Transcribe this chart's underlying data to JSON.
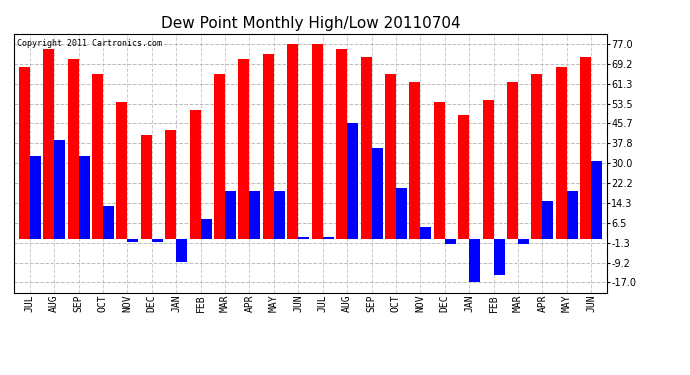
{
  "title": "Dew Point Monthly High/Low 20110704",
  "copyright": "Copyright 2011 Cartronics.com",
  "months": [
    "JUL",
    "AUG",
    "SEP",
    "OCT",
    "NOV",
    "DEC",
    "JAN",
    "FEB",
    "MAR",
    "APR",
    "MAY",
    "JUN",
    "JUL",
    "AUG",
    "SEP",
    "OCT",
    "NOV",
    "DEC",
    "JAN",
    "FEB",
    "MAR",
    "APR",
    "MAY",
    "JUN"
  ],
  "highs": [
    68,
    75,
    71,
    65,
    54,
    41,
    43,
    51,
    65,
    71,
    73,
    77,
    77,
    75,
    72,
    65,
    62,
    54,
    49,
    55,
    62,
    65,
    68,
    72
  ],
  "lows": [
    33,
    39,
    33,
    13,
    -1,
    -1,
    -9,
    8,
    19,
    19,
    19,
    1,
    1,
    46,
    36,
    20,
    5,
    -2,
    -17,
    -14,
    -2,
    15,
    19,
    31
  ],
  "bar_color_high": "#ff0000",
  "bar_color_low": "#0000ff",
  "yticks": [
    -17.0,
    -9.2,
    -1.3,
    6.5,
    14.3,
    22.2,
    30.0,
    37.8,
    45.7,
    53.5,
    61.3,
    69.2,
    77.0
  ],
  "ylim": [
    -21,
    81
  ],
  "background_color": "#ffffff",
  "grid_color": "#aaaaaa",
  "title_fontsize": 11,
  "figsize": [
    6.9,
    3.75
  ],
  "dpi": 100
}
